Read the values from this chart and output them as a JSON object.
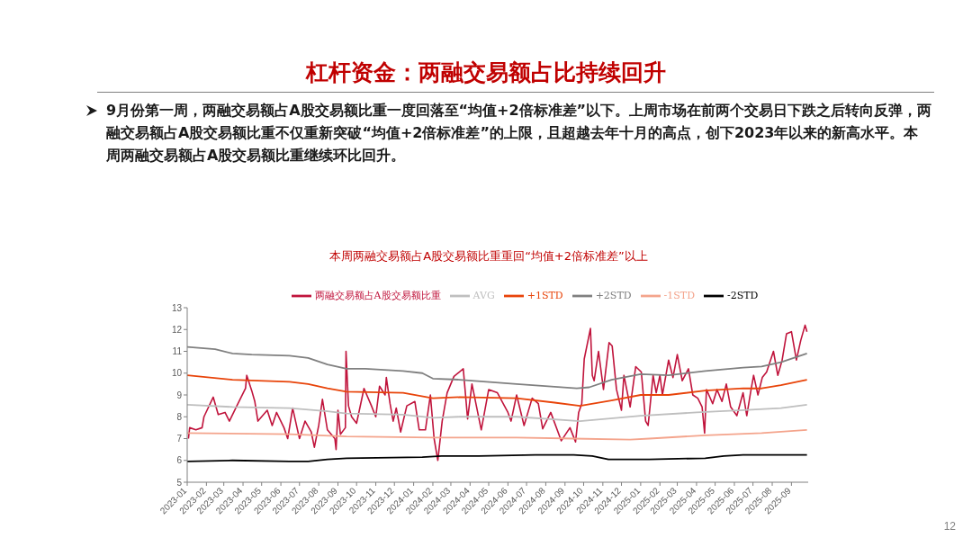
{
  "chart_data": {
    "type": "line",
    "title": "杠杆资金：两融交易额占比持续回升",
    "subtitle": "本周两融交易额占A股交易额比重重回“均值+2倍标准差”以上",
    "annotations": [
      "9月份第一周，两融交易额占A股交易额比重一度回落至“均值+2倍标准差”以下。上周市场在前两个交易日下跌之后转向反弹，两融交易额占A股交易额比重不仅重新突破“均值+2倍标准差”的上限，且超越去年十月的高点，创下2023年以来的新高水平。本周两融交易额占A股交易额比重继续环比回升。",
      "12"
    ],
    "xlim": [
      "2023-01-01",
      "2025-09-28"
    ],
    "xticks": [
      "2023-01",
      "2023-02",
      "2023-03",
      "2023-04",
      "2023-05",
      "2023-06",
      "2023-07",
      "2023-08",
      "2023-09",
      "2023-10",
      "2023-11",
      "2023-12",
      "2024-01",
      "2024-02",
      "2024-03",
      "2024-04",
      "2024-05",
      "2024-06",
      "2024-07",
      "2024-08",
      "2024-09",
      "2024-10",
      "2024-11",
      "2024-12",
      "2025-01",
      "2025-02",
      "2025-03",
      "2025-04",
      "2025-05",
      "2025-06",
      "2025-07",
      "2025-08",
      "2025-09"
    ],
    "ylim": [
      5,
      13
    ],
    "yticks": [
      5,
      6,
      7,
      8,
      9,
      10,
      11,
      12,
      13
    ],
    "legend": "top",
    "marker": "none",
    "line_style": "solid",
    "series": [
      {
        "name": "两融交易额占A股交易额比重",
        "color": "#c0143c",
        "x": [
          "2023-01-03",
          "2023-01-05",
          "2023-01-15",
          "2023-01-25",
          "2023-01-28",
          "2023-02-12",
          "2023-02-20",
          "2023-03-03",
          "2023-03-10",
          "2023-03-22",
          "2023-04-05",
          "2023-04-07",
          "2023-04-15",
          "2023-04-20",
          "2023-04-25",
          "2023-05-10",
          "2023-05-18",
          "2023-05-25",
          "2023-06-06",
          "2023-06-12",
          "2023-06-20",
          "2023-06-27",
          "2023-07-01",
          "2023-07-10",
          "2023-07-20",
          "2023-07-25",
          "2023-08-01",
          "2023-08-07",
          "2023-08-15",
          "2023-08-27",
          "2023-08-29",
          "2023-09-01",
          "2023-09-05",
          "2023-09-13",
          "2023-09-14",
          "2023-09-18",
          "2023-09-23",
          "2023-10-01",
          "2023-10-13",
          "2023-10-25",
          "2023-11-01",
          "2023-11-07",
          "2023-11-16",
          "2023-11-18",
          "2023-11-24",
          "2023-11-29",
          "2023-12-04",
          "2023-12-11",
          "2023-12-21",
          "2024-01-03",
          "2024-01-10",
          "2024-01-20",
          "2024-01-28",
          "2024-02-03",
          "2024-02-09",
          "2024-02-16",
          "2024-02-24",
          "2024-03-06",
          "2024-03-21",
          "2024-03-28",
          "2024-04-04",
          "2024-04-19",
          "2024-05-01",
          "2024-05-15",
          "2024-06-01",
          "2024-06-06",
          "2024-06-15",
          "2024-06-27",
          "2024-07-10",
          "2024-07-20",
          "2024-07-27",
          "2024-08-09",
          "2024-08-26",
          "2024-09-09",
          "2024-09-18",
          "2024-09-23",
          "2024-09-28",
          "2024-10-02",
          "2024-10-12",
          "2024-10-15",
          "2024-10-18",
          "2024-10-25",
          "2024-11-02",
          "2024-11-11",
          "2024-11-16",
          "2024-11-23",
          "2024-12-01",
          "2024-12-05",
          "2024-12-15",
          "2024-12-24",
          "2025-01-02",
          "2025-01-09",
          "2025-01-13",
          "2025-01-21",
          "2025-01-26",
          "2025-02-01",
          "2025-02-05",
          "2025-02-15",
          "2025-02-22",
          "2025-03-01",
          "2025-03-09",
          "2025-03-19",
          "2025-03-26",
          "2025-04-03",
          "2025-04-10",
          "2025-04-14",
          "2025-04-17",
          "2025-04-27",
          "2025-05-04",
          "2025-05-12",
          "2025-05-19",
          "2025-05-26",
          "2025-06-05",
          "2025-06-15",
          "2025-06-21",
          "2025-06-27",
          "2025-07-02",
          "2025-07-09",
          "2025-07-16",
          "2025-07-23",
          "2025-08-03",
          "2025-08-10",
          "2025-08-17",
          "2025-08-24",
          "2025-09-01",
          "2025-09-09",
          "2025-09-16",
          "2025-09-23",
          "2025-09-26"
        ],
        "values": [
          7.0,
          7.5,
          7.4,
          7.5,
          8.0,
          8.9,
          8.1,
          8.2,
          7.8,
          8.5,
          9.3,
          9.9,
          9.2,
          8.7,
          7.8,
          8.3,
          7.6,
          8.2,
          7.5,
          7.0,
          8.4,
          7.5,
          7.0,
          7.8,
          7.3,
          6.6,
          7.6,
          8.8,
          7.4,
          7.0,
          6.5,
          8.3,
          7.2,
          7.5,
          11.0,
          8.5,
          8.0,
          7.7,
          9.3,
          8.5,
          8.0,
          9.4,
          9.0,
          9.8,
          8.6,
          7.8,
          8.4,
          7.3,
          8.5,
          8.7,
          7.4,
          7.4,
          9.0,
          7.0,
          6.0,
          7.8,
          9.1,
          9.85,
          10.2,
          7.9,
          9.5,
          7.4,
          9.25,
          9.1,
          8.2,
          7.8,
          9.0,
          7.6,
          8.85,
          8.6,
          7.45,
          8.2,
          6.9,
          7.5,
          6.85,
          8.2,
          8.6,
          10.65,
          12.05,
          9.9,
          9.65,
          11.0,
          9.25,
          11.4,
          11.25,
          9.25,
          8.3,
          9.9,
          8.45,
          10.3,
          10.05,
          7.8,
          7.6,
          9.9,
          9.1,
          9.9,
          9.0,
          10.6,
          9.8,
          10.85,
          9.65,
          10.2,
          9.0,
          8.85,
          8.45,
          7.25,
          9.25,
          8.6,
          9.25,
          8.7,
          9.5,
          8.45,
          8.05,
          9.1,
          8.05,
          9.1,
          9.9,
          9.0,
          9.8,
          10.05,
          11.0,
          9.9,
          10.6,
          11.8,
          11.9,
          10.6,
          11.5,
          12.2,
          11.9
        ]
      },
      {
        "name": "AVG",
        "color": "#bfbfbf",
        "x": [
          "2023-01-01",
          "2023-03-15",
          "2023-06-15",
          "2023-08-15",
          "2023-09-15",
          "2023-12-15",
          "2024-02-01",
          "2024-03-15",
          "2024-06-15",
          "2024-09-25",
          "2025-01-01",
          "2025-04-01",
          "2025-06-15",
          "2025-08-15",
          "2025-09-26"
        ],
        "values": [
          8.55,
          8.45,
          8.4,
          8.25,
          8.15,
          8.1,
          7.95,
          8.0,
          8.0,
          7.8,
          8.05,
          8.2,
          8.3,
          8.4,
          8.55
        ]
      },
      {
        "name": "+1STD",
        "color": "#e8440a",
        "x": [
          "2023-01-01",
          "2023-03-15",
          "2023-06-15",
          "2023-07-15",
          "2023-08-15",
          "2023-09-15",
          "2023-12-15",
          "2024-02-01",
          "2024-03-15",
          "2024-06-15",
          "2024-08-15",
          "2024-09-25",
          "2024-11-15",
          "2025-01-01",
          "2025-02-15",
          "2025-04-15",
          "2025-06-15",
          "2025-07-15",
          "2025-08-15",
          "2025-09-26"
        ],
        "values": [
          9.9,
          9.7,
          9.6,
          9.5,
          9.3,
          9.15,
          9.1,
          8.85,
          8.9,
          8.85,
          8.65,
          8.5,
          8.75,
          9.0,
          9.0,
          9.2,
          9.3,
          9.3,
          9.45,
          9.7
        ]
      },
      {
        "name": "+2STD",
        "color": "#808080",
        "x": [
          "2023-01-01",
          "2023-02-15",
          "2023-03-15",
          "2023-04-15",
          "2023-06-15",
          "2023-07-15",
          "2023-08-15",
          "2023-09-15",
          "2023-10-15",
          "2023-12-15",
          "2024-01-15",
          "2024-02-01",
          "2024-03-15",
          "2024-06-15",
          "2024-09-20",
          "2024-10-10",
          "2024-11-15",
          "2025-01-01",
          "2025-02-15",
          "2025-04-15",
          "2025-06-15",
          "2025-07-15",
          "2025-08-15",
          "2025-09-26"
        ],
        "values": [
          11.2,
          11.1,
          10.9,
          10.85,
          10.8,
          10.7,
          10.4,
          10.2,
          10.2,
          10.1,
          10.0,
          9.75,
          9.7,
          9.5,
          9.3,
          9.35,
          9.7,
          9.95,
          9.9,
          10.1,
          10.25,
          10.3,
          10.5,
          10.9
        ]
      },
      {
        "name": "-1STD",
        "color": "#f4a48c",
        "x": [
          "2023-01-01",
          "2023-06-15",
          "2023-09-15",
          "2024-02-01",
          "2024-06-15",
          "2024-09-15",
          "2024-12-15",
          "2025-01-15",
          "2025-04-15",
          "2025-07-15",
          "2025-09-26"
        ],
        "values": [
          7.25,
          7.2,
          7.1,
          7.05,
          7.05,
          7.0,
          6.95,
          7.0,
          7.15,
          7.25,
          7.4
        ]
      },
      {
        "name": "-2STD",
        "color": "#000000",
        "x": [
          "2023-01-01",
          "2023-03-15",
          "2023-06-15",
          "2023-07-15",
          "2023-08-15",
          "2023-09-15",
          "2024-01-15",
          "2024-02-15",
          "2024-04-15",
          "2024-07-15",
          "2024-09-15",
          "2024-10-15",
          "2024-11-10",
          "2025-01-15",
          "2025-04-15",
          "2025-05-15",
          "2025-06-15",
          "2025-09-26"
        ],
        "values": [
          5.95,
          6.0,
          5.95,
          5.95,
          6.05,
          6.1,
          6.15,
          6.2,
          6.2,
          6.25,
          6.25,
          6.2,
          6.05,
          6.05,
          6.1,
          6.2,
          6.25,
          6.25
        ]
      }
    ]
  }
}
